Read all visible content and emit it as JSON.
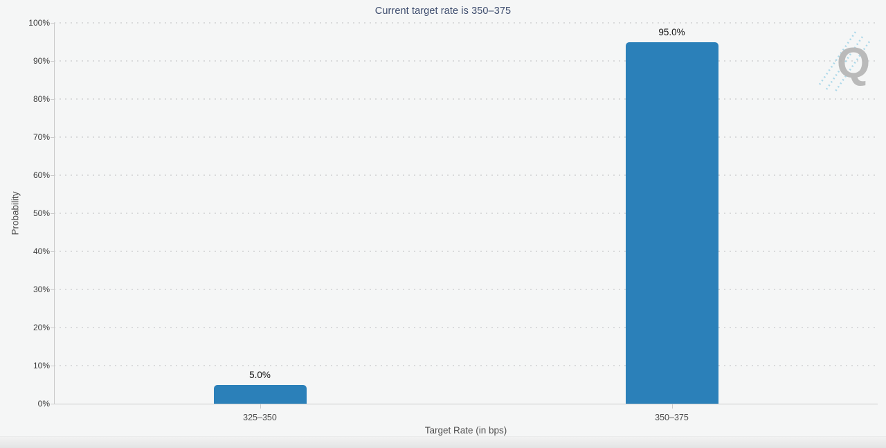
{
  "chart": {
    "watermark_letter": "Q"
  },
  "chart_data": {
    "type": "bar",
    "title": "Current target rate is 350–375",
    "categories": [
      "325–350",
      "350–375"
    ],
    "values": [
      5.0,
      95.0
    ],
    "value_labels": [
      "5.0%",
      "95.0%"
    ],
    "xlabel": "Target Rate (in bps)",
    "ylabel": "Probability",
    "ylim": [
      0,
      100
    ],
    "ytick_step": 10,
    "ytick_suffix": "%",
    "grid": "horizontal-dotted",
    "legend_position": "none",
    "colors": {
      "bar": "#2b80b9",
      "title_text": "#3e4d6e",
      "grid_dots": "#d9dadb",
      "axis_line": "#c9c9c9",
      "tick_text": "#3b3b3b",
      "category_text": "#4b4b4b",
      "axis_title_text": "#4f4f4f",
      "background": "#f5f6f6",
      "watermark_q": "#b4b4b4",
      "watermark_dashes": "#a5d5e8"
    }
  }
}
